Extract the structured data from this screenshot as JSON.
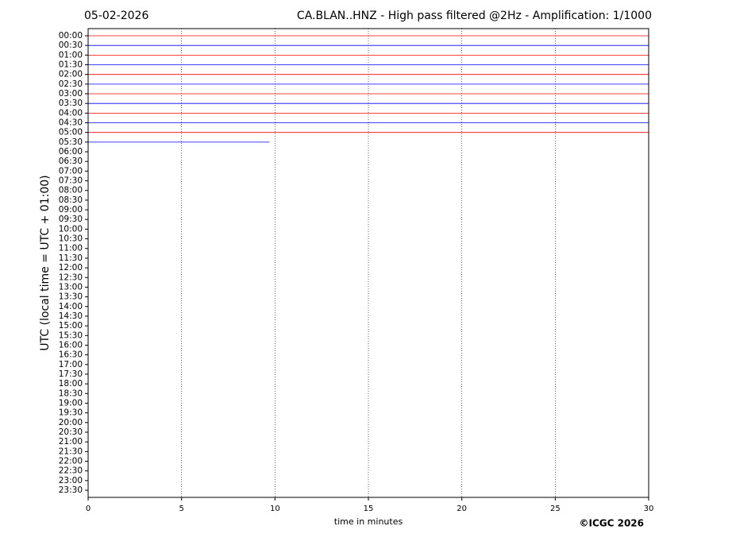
{
  "chart_data": {
    "type": "helicorder",
    "date": "05-02-2026",
    "title": "CA.BLAN..HNZ - High pass filtered @2Hz - Amplification: 1/1000",
    "ylabel": "UTC (local time = UTC + 01:00)",
    "xlabel": "time in minutes",
    "credit": "©ICGC 2026",
    "categories": [
      "00:00",
      "00:30",
      "01:00",
      "01:30",
      "02:00",
      "02:30",
      "03:00",
      "03:30",
      "04:00",
      "04:30",
      "05:00",
      "05:30",
      "06:00",
      "06:30",
      "07:00",
      "07:30",
      "08:00",
      "08:30",
      "09:00",
      "09:30",
      "10:00",
      "10:30",
      "11:00",
      "11:30",
      "12:00",
      "12:30",
      "13:00",
      "13:30",
      "14:00",
      "14:30",
      "15:00",
      "15:30",
      "16:00",
      "16:30",
      "17:00",
      "17:30",
      "18:00",
      "18:30",
      "19:00",
      "19:30",
      "20:00",
      "20:30",
      "21:00",
      "21:30",
      "22:00",
      "22:30",
      "23:00",
      "23:30"
    ],
    "trace_colors": [
      "#ff0000",
      "#0000ff"
    ],
    "trace_ends": [
      30,
      30,
      30,
      30,
      30,
      30,
      30,
      30,
      30,
      30,
      30,
      9.7
    ],
    "xlim": [
      0,
      30
    ],
    "xticks": [
      0,
      5,
      10,
      15,
      20,
      25,
      30
    ],
    "grid": true
  }
}
